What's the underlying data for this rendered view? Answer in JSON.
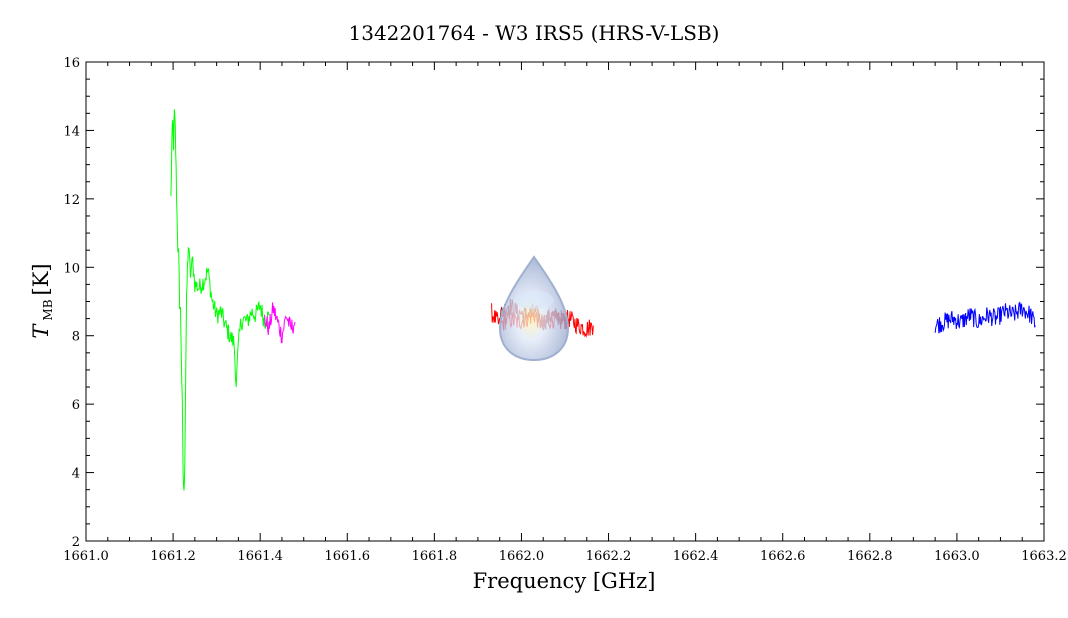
{
  "chart_data": {
    "type": "line",
    "title": "1342201764 - W3 IRS5 (HRS-V-LSB)",
    "xlabel": "Frequency [GHz]",
    "ylabel_main": "T",
    "ylabel_sub": "MB",
    "ylabel_unit": "[K]",
    "xlim": [
      1661.0,
      1663.2
    ],
    "ylim": [
      2,
      16
    ],
    "xticks": [
      1661.0,
      1661.2,
      1661.4,
      1661.6,
      1661.8,
      1662.0,
      1662.2,
      1662.4,
      1662.6,
      1662.8,
      1663.0,
      1663.2
    ],
    "xtick_labels": [
      "1661.0",
      "1661.2",
      "1661.4",
      "1661.6",
      "1661.8",
      "1662.0",
      "1662.2",
      "1662.4",
      "1662.6",
      "1662.8",
      "1663.0",
      "1663.2"
    ],
    "yticks": [
      2,
      4,
      6,
      8,
      10,
      12,
      14,
      16
    ],
    "ytick_labels": [
      "2",
      "4",
      "6",
      "8",
      "10",
      "12",
      "14",
      "16"
    ],
    "grid": false,
    "series": [
      {
        "color": "#00ff00",
        "x": [
          1661.195,
          1661.197,
          1661.199,
          1661.201,
          1661.203,
          1661.205,
          1661.207,
          1661.209,
          1661.211,
          1661.213,
          1661.215,
          1661.217,
          1661.219,
          1661.221,
          1661.223,
          1661.225,
          1661.227,
          1661.229,
          1661.231,
          1661.233,
          1661.235,
          1661.24,
          1661.245,
          1661.25,
          1661.26,
          1661.27,
          1661.28,
          1661.29,
          1661.3,
          1661.31,
          1661.32,
          1661.33,
          1661.34,
          1661.345,
          1661.35,
          1661.355,
          1661.36,
          1661.37,
          1661.38,
          1661.39,
          1661.4,
          1661.41,
          1661.42
        ],
        "y": [
          12.0,
          13.5,
          14.2,
          13.6,
          14.5,
          14.0,
          12.8,
          11.5,
          10.6,
          10.2,
          9.0,
          8.7,
          7.4,
          6.0,
          4.0,
          3.3,
          4.5,
          7.0,
          9.0,
          10.0,
          10.6,
          9.8,
          10.2,
          9.5,
          9.4,
          9.6,
          9.9,
          9.0,
          8.6,
          8.7,
          8.3,
          8.0,
          7.8,
          6.6,
          7.7,
          8.3,
          8.5,
          8.4,
          8.7,
          8.6,
          8.9,
          8.4,
          8.6
        ]
      },
      {
        "color": "#ff00ff",
        "x": [
          1661.41,
          1661.42,
          1661.43,
          1661.44,
          1661.45,
          1661.46,
          1661.47,
          1661.48
        ],
        "y": [
          8.5,
          8.2,
          8.8,
          8.4,
          8.0,
          8.6,
          8.2,
          8.4
        ]
      },
      {
        "color": "#ff0000",
        "x": [
          1661.93,
          1661.95,
          1661.97,
          1661.99,
          1662.01,
          1662.03,
          1662.05,
          1662.07,
          1662.09,
          1662.11,
          1662.13,
          1662.15,
          1662.165
        ],
        "y": [
          8.7,
          8.3,
          8.5,
          8.4,
          8.5,
          8.6,
          8.3,
          8.5,
          8.4,
          8.5,
          8.3,
          8.2,
          8.3
        ]
      },
      {
        "color": "#b22222",
        "x": [
          1661.95,
          1661.97,
          1661.99,
          1662.01,
          1662.03,
          1662.05,
          1662.07,
          1662.09,
          1662.11
        ],
        "y": [
          8.6,
          8.9,
          8.7,
          8.6,
          8.7,
          8.4,
          8.6,
          8.5,
          8.4
        ]
      },
      {
        "color": "#0000ff",
        "x": [
          1662.95,
          1662.97,
          1662.99,
          1663.01,
          1663.03,
          1663.05,
          1663.07,
          1663.09,
          1663.11,
          1663.13,
          1663.15,
          1663.17,
          1663.18
        ],
        "y": [
          8.3,
          8.4,
          8.5,
          8.4,
          8.6,
          8.4,
          8.6,
          8.5,
          8.7,
          8.6,
          8.8,
          8.6,
          8.3
        ]
      }
    ]
  }
}
